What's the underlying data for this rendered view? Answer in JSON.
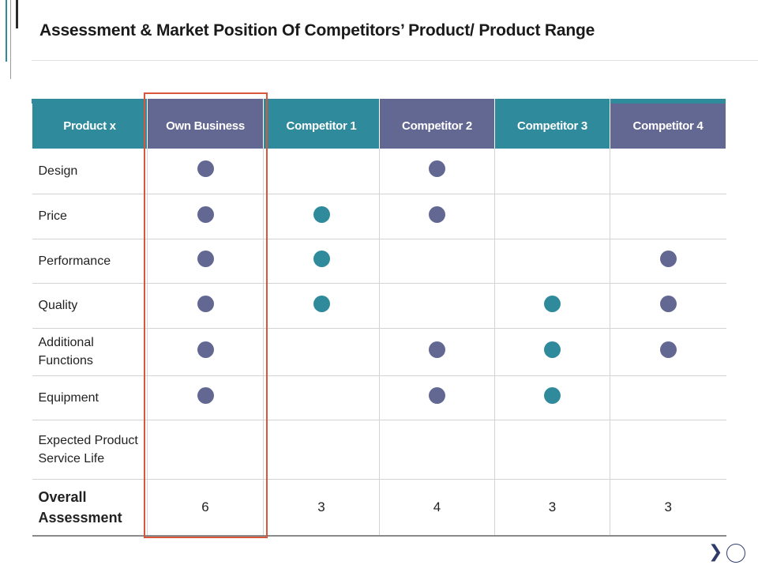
{
  "slide": {
    "title": "Assessment & Market Position Of Competitors’ Product/ Product Range"
  },
  "colors": {
    "purple": "#636892",
    "teal": "#2f8a9b",
    "highlight": "#d9563a",
    "accent_dark": "#2f3c6b"
  },
  "table": {
    "headers": [
      "Product x",
      "Own Business",
      "Competitor 1",
      "Competitor 2",
      "Competitor 3",
      "Competitor 4"
    ],
    "header_colors": [
      "teal",
      "purple",
      "teal",
      "purple",
      "teal",
      "purple"
    ],
    "rows": [
      {
        "label": "Design",
        "dots": [
          "purple",
          "",
          "purple",
          "",
          ""
        ]
      },
      {
        "label": "Price",
        "dots": [
          "purple",
          "teal",
          "purple",
          "",
          ""
        ]
      },
      {
        "label": "Performance",
        "dots": [
          "purple",
          "teal",
          "",
          "",
          "purple"
        ]
      },
      {
        "label": "Quality",
        "dots": [
          "purple",
          "teal",
          "",
          "teal",
          "purple"
        ]
      },
      {
        "label": "Additional Functions",
        "dots": [
          "purple",
          "",
          "purple",
          "teal",
          "purple"
        ]
      },
      {
        "label": "Equipment",
        "dots": [
          "purple",
          "",
          "purple",
          "teal",
          ""
        ]
      },
      {
        "label": "Expected Product Service Life",
        "dots": [
          "",
          "",
          "",
          "",
          ""
        ]
      }
    ],
    "total": {
      "label": "Overall Assessment",
      "values": [
        "6",
        "3",
        "4",
        "3",
        "3"
      ]
    }
  },
  "nav": {
    "next_icon": "chevron-right-icon",
    "page_icon": "circle-icon"
  }
}
